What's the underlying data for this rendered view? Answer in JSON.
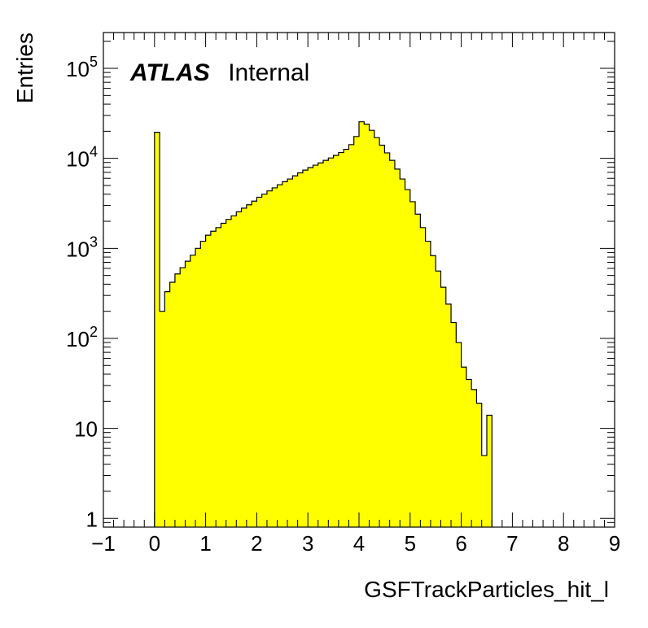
{
  "chart_data": {
    "type": "histogram",
    "title": "",
    "xlabel": "GSFTrackParticles_hit_l",
    "ylabel": "Entries",
    "xlim": [
      -1,
      9
    ],
    "ylim": [
      0.8,
      250000
    ],
    "yscale": "log",
    "x_ticks": [
      "−1",
      "0",
      "1",
      "2",
      "3",
      "4",
      "5",
      "6",
      "7",
      "8",
      "9"
    ],
    "y_ticks": [
      {
        "value": 1,
        "base": "1",
        "exp": ""
      },
      {
        "value": 10,
        "base": "10",
        "exp": ""
      },
      {
        "value": 100,
        "base": "10",
        "exp": "2"
      },
      {
        "value": 1000,
        "base": "10",
        "exp": "3"
      },
      {
        "value": 10000,
        "base": "10",
        "exp": "4"
      },
      {
        "value": 100000,
        "base": "10",
        "exp": "5"
      }
    ],
    "bin_width": 0.1,
    "bin_start": 0,
    "values": [
      19500,
      200,
      330,
      420,
      520,
      610,
      720,
      840,
      1000,
      1200,
      1400,
      1550,
      1700,
      1900,
      2100,
      2300,
      2550,
      2800,
      3050,
      3350,
      3700,
      4000,
      4350,
      4700,
      5100,
      5500,
      5900,
      6400,
      6900,
      7400,
      7900,
      8400,
      8900,
      9500,
      10100,
      10800,
      11600,
      12600,
      14200,
      17500,
      25500,
      24000,
      20500,
      17000,
      14000,
      11500,
      9500,
      7600,
      5900,
      4500,
      3300,
      2400,
      1700,
      1200,
      830,
      560,
      370,
      240,
      150,
      90,
      48,
      35,
      27,
      19,
      5,
      14
    ],
    "fill_color": "#ffff00",
    "line_color": "#000000",
    "grid": false,
    "legend": "none",
    "annotations": [
      {
        "bold": "ATLAS",
        "text": "Internal",
        "placement": "top-left"
      }
    ]
  }
}
